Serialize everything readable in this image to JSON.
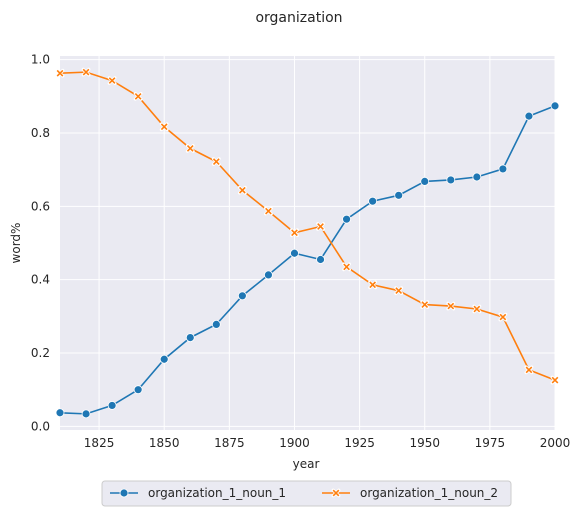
{
  "chart_data": {
    "type": "line",
    "title": "organization",
    "xlabel": "year",
    "ylabel": "word%",
    "xlim": [
      1810,
      2000
    ],
    "ylim": [
      -0.01,
      1.01
    ],
    "xticks": [
      1825,
      1850,
      1875,
      1900,
      1925,
      1950,
      1975,
      2000
    ],
    "yticks": [
      0.0,
      0.2,
      0.4,
      0.6,
      0.8,
      1.0
    ],
    "grid": true,
    "legend_position": "bottom-center",
    "x": [
      1810,
      1820,
      1830,
      1840,
      1850,
      1860,
      1870,
      1880,
      1890,
      1900,
      1910,
      1920,
      1930,
      1940,
      1950,
      1960,
      1970,
      1980,
      1990,
      2000
    ],
    "series": [
      {
        "name": "organization_1_noun_1",
        "color": "#1f77b4",
        "marker": "circle",
        "values": [
          0.037,
          0.034,
          0.057,
          0.1,
          0.183,
          0.242,
          0.278,
          0.356,
          0.413,
          0.472,
          0.455,
          0.565,
          0.614,
          0.63,
          0.668,
          0.672,
          0.68,
          0.702,
          0.846,
          0.874
        ]
      },
      {
        "name": "organization_1_noun_2",
        "color": "#ff7f0e",
        "marker": "x",
        "values": [
          0.963,
          0.966,
          0.943,
          0.9,
          0.817,
          0.758,
          0.722,
          0.644,
          0.587,
          0.528,
          0.545,
          0.435,
          0.386,
          0.37,
          0.332,
          0.328,
          0.32,
          0.298,
          0.154,
          0.126
        ]
      }
    ]
  }
}
